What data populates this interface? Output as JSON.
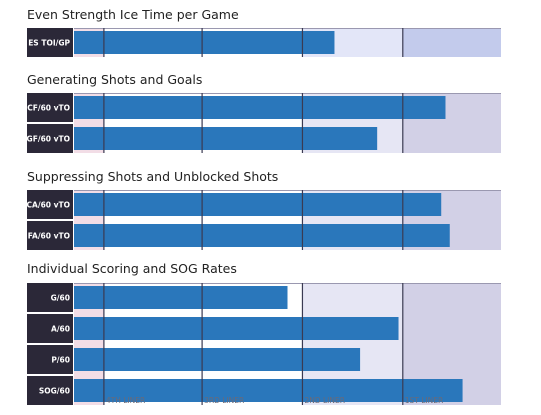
{
  "chart_data": {
    "type": "bar",
    "orientation": "horizontal",
    "colors": {
      "bar": "#2a77bb",
      "label_bg": "#2b2838",
      "zone_4th": "#f2dde6",
      "zone_3rd": "#ffffff",
      "zone_2nd": "#e6e6f4",
      "zone_1st": "#d2d0e6",
      "zone_1st_top": "#c3cbec",
      "zone_2nd_top": "#e3e6f8",
      "divider": "#3a3a52"
    },
    "zone_labels": [
      "4TH LINER",
      "3RD LINER",
      "2ND LINER",
      "1ST LINER"
    ],
    "sections": [
      {
        "title": "Even Strength Ice Time per Game",
        "rows": [
          {
            "label": "ES TOI/GP",
            "value": 0.61
          }
        ]
      },
      {
        "title": "Generating Shots and Goals",
        "rows": [
          {
            "label": "CF/60 vTO",
            "value": 0.87
          },
          {
            "label": "GF/60 vTO",
            "value": 0.71
          }
        ]
      },
      {
        "title": "Suppressing Shots and Unblocked Shots",
        "rows": [
          {
            "label": "CA/60 vTO",
            "value": 0.86
          },
          {
            "label": "FA/60 vTO",
            "value": 0.88
          }
        ]
      },
      {
        "title": "Individual Scoring and SOG Rates",
        "rows": [
          {
            "label": "G/60",
            "value": 0.5
          },
          {
            "label": "A/60",
            "value": 0.76
          },
          {
            "label": "P/60",
            "value": 0.67
          },
          {
            "label": "SOG/60",
            "value": 0.91
          }
        ]
      }
    ]
  }
}
